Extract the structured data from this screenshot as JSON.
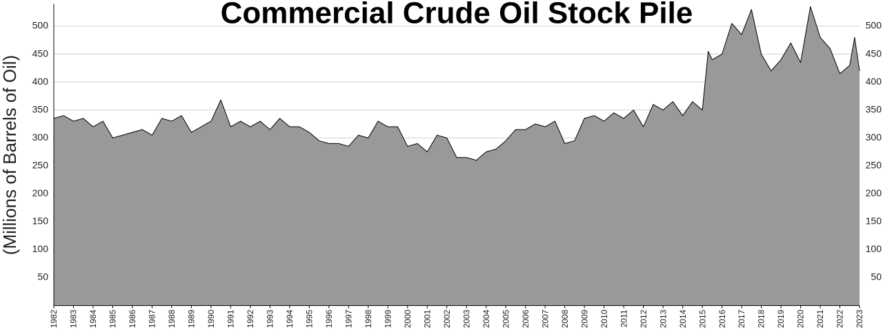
{
  "chart_data": {
    "type": "area",
    "title": "Commercial Crude Oil Stock Pile",
    "y_label": "(Millions of Barrels of Oil)",
    "x": [
      1982.0,
      1982.5,
      1983.0,
      1983.5,
      1984.0,
      1984.5,
      1985.0,
      1985.5,
      1986.0,
      1986.5,
      1987.0,
      1987.5,
      1988.0,
      1988.5,
      1989.0,
      1989.5,
      1990.0,
      1990.5,
      1991.0,
      1991.5,
      1992.0,
      1992.5,
      1993.0,
      1993.5,
      1994.0,
      1994.5,
      1995.0,
      1995.5,
      1996.0,
      1996.5,
      1997.0,
      1997.5,
      1998.0,
      1998.5,
      1999.0,
      1999.5,
      2000.0,
      2000.5,
      2001.0,
      2001.5,
      2002.0,
      2002.5,
      2003.0,
      2003.5,
      2004.0,
      2004.5,
      2005.0,
      2005.5,
      2006.0,
      2006.5,
      2007.0,
      2007.5,
      2008.0,
      2008.5,
      2009.0,
      2009.5,
      2010.0,
      2010.5,
      2011.0,
      2011.5,
      2012.0,
      2012.5,
      2013.0,
      2013.5,
      2014.0,
      2014.5,
      2015.0,
      2015.3,
      2015.5,
      2016.0,
      2016.5,
      2017.0,
      2017.5,
      2018.0,
      2018.5,
      2019.0,
      2019.5,
      2020.0,
      2020.5,
      2021.0,
      2021.5,
      2022.0,
      2022.5,
      2022.75,
      2023.0
    ],
    "series": [
      {
        "name": "Commercial crude oil stocks",
        "color": "#999999",
        "values": [
          335,
          340,
          330,
          335,
          320,
          330,
          300,
          305,
          310,
          315,
          305,
          335,
          330,
          340,
          310,
          320,
          330,
          368,
          320,
          330,
          320,
          330,
          315,
          335,
          320,
          320,
          310,
          295,
          290,
          290,
          285,
          305,
          300,
          330,
          320,
          320,
          285,
          290,
          275,
          305,
          300,
          265,
          265,
          260,
          275,
          280,
          295,
          315,
          315,
          325,
          320,
          330,
          290,
          295,
          335,
          340,
          330,
          345,
          335,
          350,
          320,
          360,
          350,
          365,
          340,
          365,
          350,
          455,
          440,
          450,
          505,
          485,
          530,
          450,
          420,
          440,
          470,
          435,
          535,
          480,
          460,
          415,
          430,
          480,
          420
        ]
      }
    ],
    "xlim": [
      1982,
      2023
    ],
    "xticks": [
      1982,
      1983,
      1984,
      1985,
      1986,
      1987,
      1988,
      1989,
      1990,
      1991,
      1992,
      1993,
      1994,
      1995,
      1996,
      1997,
      1998,
      1999,
      2000,
      2001,
      2002,
      2003,
      2004,
      2005,
      2006,
      2007,
      2008,
      2009,
      2010,
      2011,
      2012,
      2013,
      2014,
      2015,
      2016,
      2017,
      2018,
      2019,
      2020,
      2021,
      2022,
      2023
    ],
    "ylim": [
      0,
      540
    ],
    "yticks": [
      50,
      100,
      150,
      200,
      250,
      300,
      350,
      400,
      450,
      500
    ],
    "grid": true
  }
}
